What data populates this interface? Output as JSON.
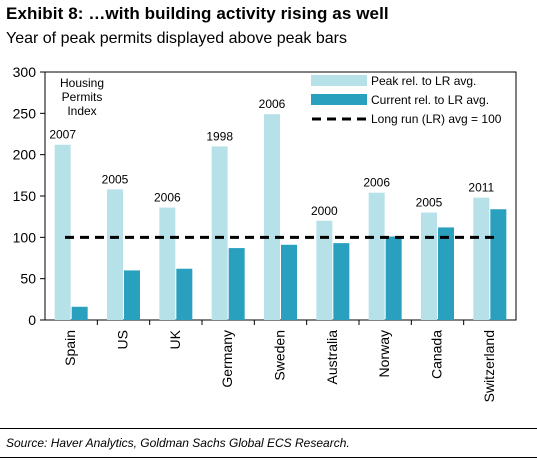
{
  "header": {
    "title": "Exhibit 8: …with building activity rising as well",
    "subtitle": "Year of peak permits displayed above peak bars"
  },
  "source": "Source: Haver Analytics, Goldman Sachs Global ECS Research.",
  "colors": {
    "peak": "#b7e1e9",
    "current": "#2aa0bf",
    "long_run": "#000000"
  },
  "chart_data": {
    "type": "bar",
    "note": [
      "Housing",
      "Permits",
      "Index"
    ],
    "categories": [
      "Spain",
      "US",
      "UK",
      "Germany",
      "Sweden",
      "Australia",
      "Norway",
      "Canada",
      "Switzerland"
    ],
    "peak_years": [
      "2007",
      "2005",
      "2006",
      "1998",
      "2006",
      "2000",
      "2006",
      "2005",
      "2011"
    ],
    "series": [
      {
        "name": "Peak rel. to LR avg.",
        "values": [
          212,
          158,
          136,
          210,
          249,
          120,
          154,
          130,
          148
        ]
      },
      {
        "name": "Current rel. to LR avg.",
        "values": [
          16,
          60,
          62,
          87,
          91,
          93,
          101,
          112,
          134
        ]
      }
    ],
    "reference_line": {
      "name": "Long run (LR) avg = 100",
      "value": 100
    },
    "ylim": [
      0,
      300
    ],
    "yticks": [
      "0",
      "50",
      "100",
      "150",
      "200",
      "250",
      "300"
    ],
    "grid": false,
    "legend_position": "top-right"
  }
}
